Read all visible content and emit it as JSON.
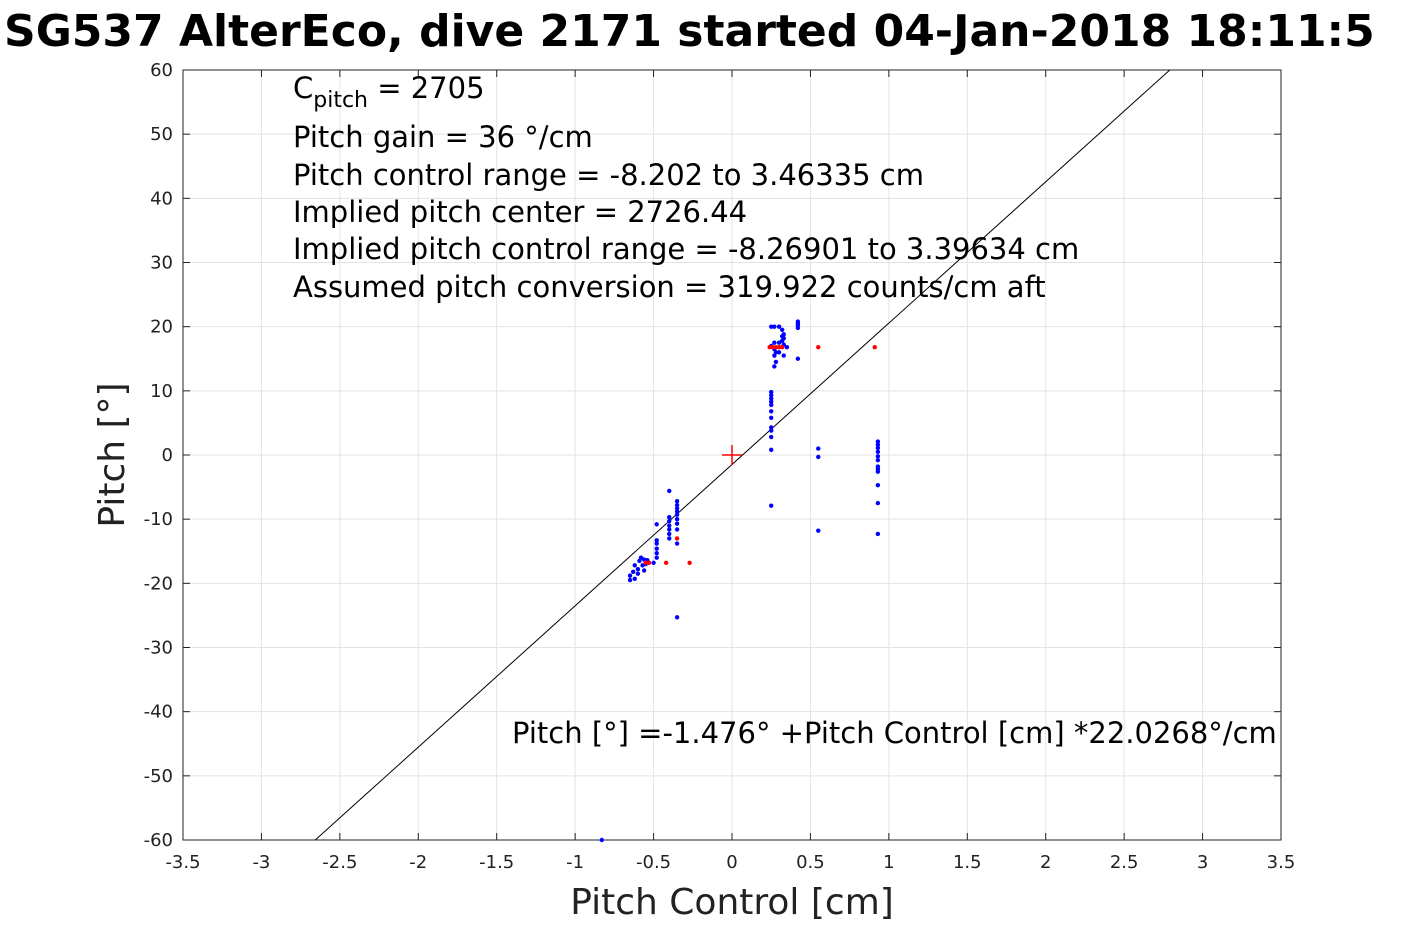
{
  "chart_data": {
    "type": "scatter",
    "title": "SG537 AlterEco, dive 2171 started 04-Jan-2018 18:11:5",
    "xlabel": "Pitch Control [cm]",
    "ylabel": "Pitch [°]",
    "xlim": [
      -3.5,
      3.5
    ],
    "ylim": [
      -60,
      60
    ],
    "xticks": [
      -3.5,
      -3,
      -2.5,
      -2,
      -1.5,
      -1,
      -0.5,
      0,
      0.5,
      1,
      1.5,
      2,
      2.5,
      3,
      3.5
    ],
    "yticks": [
      -60,
      -50,
      -40,
      -30,
      -20,
      -10,
      0,
      10,
      20,
      30,
      40,
      50,
      60
    ],
    "xtick_labels": [
      "-3.5",
      "-3",
      "-2.5",
      "-2",
      "-1.5",
      "-1",
      "-0.5",
      "0",
      "0.5",
      "1",
      "1.5",
      "2",
      "2.5",
      "3",
      "3.5"
    ],
    "ytick_labels": [
      "-60",
      "-50",
      "-40",
      "-30",
      "-20",
      "-10",
      "0",
      "10",
      "20",
      "30",
      "40",
      "50",
      "60"
    ],
    "grid": true,
    "colors": {
      "blue": "#0000ff",
      "red": "#ff0000",
      "fit": "#000000"
    },
    "annotations": {
      "c_pitch_base": "C",
      "c_pitch_sub": "pitch",
      "c_pitch_value": " = 2705",
      "lines": [
        "Pitch gain = 36 °/cm",
        "Pitch control range = -8.202 to 3.46335 cm",
        "Implied pitch center = 2726.44",
        "Implied pitch control range = -8.26901 to 3.39634 cm",
        "Assumed pitch conversion = 319.922 counts/cm aft"
      ],
      "fit_equation": "Pitch [°] =-1.476° +Pitch Control [cm] *22.0268°/cm"
    },
    "fit_line": {
      "intercept": -1.476,
      "slope": 22.0268
    },
    "center_marker": {
      "x": 0,
      "y": 0
    },
    "series": [
      {
        "color": "blue",
        "points": [
          [
            -0.65,
            -19.5
          ],
          [
            -0.65,
            -18.8
          ],
          [
            -0.63,
            -18.2
          ],
          [
            -0.62,
            -19.3
          ],
          [
            -0.62,
            -17.2
          ],
          [
            -0.6,
            -18.5
          ],
          [
            -0.6,
            -17.8
          ],
          [
            -0.59,
            -16.5
          ],
          [
            -0.58,
            -16.0
          ],
          [
            -0.57,
            -17.2
          ],
          [
            -0.56,
            -16.3
          ],
          [
            -0.56,
            -18.0
          ],
          [
            -0.55,
            -17.0
          ],
          [
            -0.54,
            -16.4
          ],
          [
            -0.53,
            -16.8
          ],
          [
            -0.5,
            -16.8
          ],
          [
            -0.48,
            -16.0
          ],
          [
            -0.48,
            -15.3
          ],
          [
            -0.48,
            -14.6
          ],
          [
            -0.48,
            -13.8
          ],
          [
            -0.48,
            -13.3
          ],
          [
            -0.48,
            -10.8
          ],
          [
            -0.4,
            -13.0
          ],
          [
            -0.4,
            -12.3
          ],
          [
            -0.4,
            -11.6
          ],
          [
            -0.4,
            -11.0
          ],
          [
            -0.4,
            -10.3
          ],
          [
            -0.4,
            -9.7
          ],
          [
            -0.4,
            -5.6
          ],
          [
            -0.35,
            -13.8
          ],
          [
            -0.35,
            -11.6
          ],
          [
            -0.35,
            -10.7
          ],
          [
            -0.35,
            -10.0
          ],
          [
            -0.35,
            -9.3
          ],
          [
            -0.35,
            -8.8
          ],
          [
            -0.35,
            -8.3
          ],
          [
            -0.35,
            -7.8
          ],
          [
            -0.35,
            -7.2
          ],
          [
            -0.35,
            -25.3
          ],
          [
            0.25,
            -7.9
          ],
          [
            0.25,
            0.8
          ],
          [
            0.25,
            2.8
          ],
          [
            0.25,
            3.8
          ],
          [
            0.25,
            4.3
          ],
          [
            0.25,
            5.8
          ],
          [
            0.25,
            6.8
          ],
          [
            0.25,
            7.8
          ],
          [
            0.25,
            8.3
          ],
          [
            0.25,
            8.8
          ],
          [
            0.25,
            9.3
          ],
          [
            0.25,
            9.8
          ],
          [
            0.25,
            17.0
          ],
          [
            0.25,
            20.0
          ],
          [
            0.27,
            13.8
          ],
          [
            0.27,
            15.5
          ],
          [
            0.27,
            16.5
          ],
          [
            0.27,
            17.5
          ],
          [
            0.27,
            20.0
          ],
          [
            0.28,
            14.5
          ],
          [
            0.28,
            16.0
          ],
          [
            0.3,
            17.5
          ],
          [
            0.3,
            20.0
          ],
          [
            0.3,
            16.0
          ],
          [
            0.32,
            17.8
          ],
          [
            0.32,
            18.5
          ],
          [
            0.32,
            19.5
          ],
          [
            0.33,
            15.5
          ],
          [
            0.33,
            17.2
          ],
          [
            0.33,
            18.2
          ],
          [
            0.33,
            18.8
          ],
          [
            0.35,
            16.8
          ],
          [
            0.42,
            15.0
          ],
          [
            0.42,
            19.8
          ],
          [
            0.42,
            20.2
          ],
          [
            0.42,
            20.5
          ],
          [
            0.42,
            20.8
          ],
          [
            0.55,
            1.0
          ],
          [
            0.55,
            -0.3
          ],
          [
            0.55,
            -11.8
          ],
          [
            0.93,
            2.1
          ],
          [
            0.93,
            1.6
          ],
          [
            0.93,
            1.1
          ],
          [
            0.93,
            0.5
          ],
          [
            0.93,
            -0.2
          ],
          [
            0.93,
            -0.8
          ],
          [
            0.93,
            -1.8
          ],
          [
            0.93,
            -2.2
          ],
          [
            0.93,
            -2.6
          ],
          [
            0.93,
            -4.7
          ],
          [
            0.93,
            -7.5
          ],
          [
            0.93,
            -12.3
          ],
          [
            -0.83,
            -60.0
          ]
        ]
      },
      {
        "color": "red",
        "points": [
          [
            -0.55,
            -16.8
          ],
          [
            -0.53,
            -16.8
          ],
          [
            -0.42,
            -16.8
          ],
          [
            -0.35,
            -13.0
          ],
          [
            -0.27,
            -16.8
          ],
          [
            0.24,
            16.8
          ],
          [
            0.26,
            16.8
          ],
          [
            0.28,
            16.8
          ],
          [
            0.3,
            16.8
          ],
          [
            0.32,
            16.8
          ],
          [
            0.55,
            16.8
          ],
          [
            0.91,
            16.8
          ]
        ]
      }
    ]
  }
}
